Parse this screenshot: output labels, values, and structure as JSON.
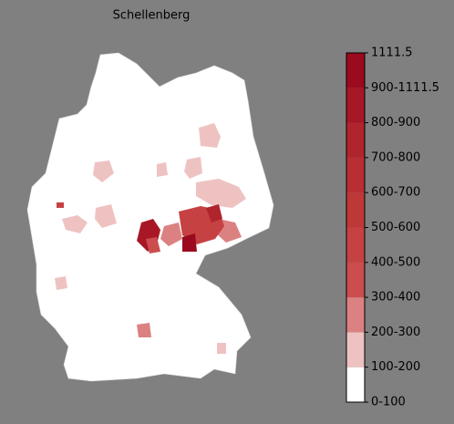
{
  "title": "Schellenberg",
  "legend": {
    "labels": [
      "0-100",
      "100-200",
      "200-300",
      "300-400",
      "400-500",
      "500-600",
      "600-700",
      "700-800",
      "800-900",
      "900-1111.5",
      "1111.5"
    ],
    "colors": [
      "#ffffff",
      "#efc2c2",
      "#dc8181",
      "#cb4d4d",
      "#c64242",
      "#bf3838",
      "#b82e33",
      "#b0242d",
      "#a81726",
      "#9b0a1e"
    ]
  }
}
